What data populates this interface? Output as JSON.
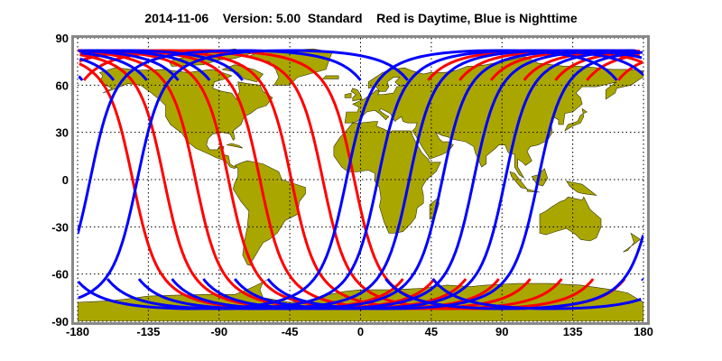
{
  "title": "2014-11-06    Version: 5.00  Standard    Red is Daytime, Blue is Nighttime",
  "chart_data": {
    "type": "map",
    "projection": "equirectangular",
    "xlim": [
      -180,
      180
    ],
    "ylim": [
      -90,
      90
    ],
    "x_ticks": [
      -180,
      -135,
      -90,
      -45,
      0,
      45,
      90,
      135,
      180
    ],
    "y_ticks": [
      90,
      60,
      30,
      0,
      -30,
      -60,
      -90
    ],
    "grid": true,
    "colors": {
      "land": "#aaa600",
      "land_outline": "#333300",
      "day_track": "#ff0000",
      "night_track": "#0000ff",
      "frame": "#888888"
    },
    "day_tracks_equator_crossing_lon": [
      -145,
      -125,
      -105,
      -84,
      -64,
      -44,
      -24,
      -4
    ],
    "night_tracks_equator_crossing_lon": [
      -172,
      -142,
      -9,
      11,
      31,
      52,
      72,
      92,
      113
    ],
    "track_max_latitude": 82
  }
}
